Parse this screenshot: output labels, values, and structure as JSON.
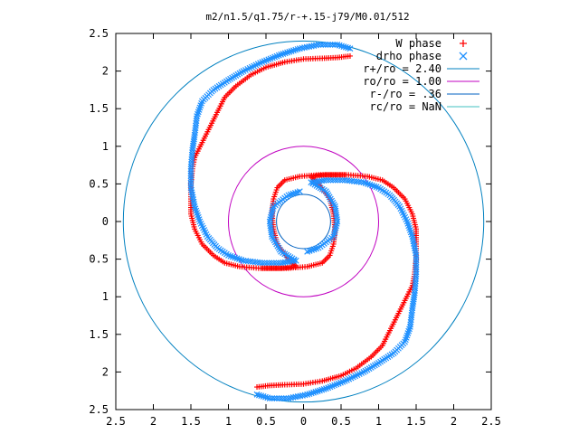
{
  "chart_data": {
    "type": "scatter",
    "title": "m2/n1.5/q1.75/r-+.15-j79/M0.01/512",
    "xlim": [
      -2.5,
      2.5
    ],
    "ylim": [
      -2.5,
      2.5
    ],
    "x_ticks": [
      -2.5,
      -2,
      -1.5,
      -1,
      -0.5,
      0,
      0.5,
      1,
      1.5,
      2,
      2.5
    ],
    "y_ticks": [
      -2.5,
      -2,
      -1.5,
      -1,
      -0.5,
      0,
      0.5,
      1,
      1.5,
      2,
      2.5
    ],
    "x_tick_labels": [
      "2.5",
      "2",
      "1.5",
      "1",
      "0.5",
      "0",
      "0.5",
      "1",
      "1.5",
      "2",
      "2.5"
    ],
    "y_tick_labels": [
      "2.5",
      "2",
      "1.5",
      "1",
      "0.5",
      "0",
      "0.5",
      "1",
      "1.5",
      "2",
      "2.5"
    ],
    "grid": false,
    "legend_position": "top-right",
    "series": [
      {
        "name": "W phase",
        "marker": "+",
        "color": "#ff0000",
        "arms": [
          [
            [
              0.55,
              0.62
            ],
            [
              0.2,
              0.62
            ],
            [
              -0.05,
              0.6
            ],
            [
              -0.25,
              0.55
            ],
            [
              -0.35,
              0.45
            ],
            [
              -0.4,
              0.3
            ],
            [
              -0.42,
              0.1
            ],
            [
              -0.4,
              -0.1
            ],
            [
              -0.35,
              -0.3
            ],
            [
              -0.2,
              -0.5
            ],
            [
              -0.1,
              -0.6
            ],
            [
              -0.3,
              -0.62
            ],
            [
              -0.6,
              -0.62
            ],
            [
              -0.85,
              -0.6
            ],
            [
              -1.05,
              -0.55
            ],
            [
              -1.2,
              -0.45
            ],
            [
              -1.35,
              -0.3
            ],
            [
              -1.45,
              -0.1
            ],
            [
              -1.5,
              0.1
            ],
            [
              -1.5,
              0.3
            ],
            [
              -1.5,
              0.5
            ],
            [
              -1.48,
              0.7
            ],
            [
              -1.45,
              0.85
            ],
            [
              -1.35,
              1.05
            ],
            [
              -1.25,
              1.25
            ],
            [
              -1.15,
              1.45
            ],
            [
              -1.05,
              1.65
            ],
            [
              -0.9,
              1.8
            ],
            [
              -0.7,
              1.95
            ],
            [
              -0.5,
              2.05
            ],
            [
              -0.25,
              2.12
            ],
            [
              0,
              2.16
            ],
            [
              0.25,
              2.17
            ],
            [
              0.45,
              2.18
            ],
            [
              0.62,
              2.2
            ]
          ],
          [
            [
              -0.55,
              -0.62
            ],
            [
              -0.2,
              -0.62
            ],
            [
              0.05,
              -0.6
            ],
            [
              0.25,
              -0.55
            ],
            [
              0.35,
              -0.45
            ],
            [
              0.4,
              -0.3
            ],
            [
              0.42,
              -0.1
            ],
            [
              0.4,
              0.1
            ],
            [
              0.35,
              0.3
            ],
            [
              0.2,
              0.5
            ],
            [
              0.1,
              0.6
            ],
            [
              0.3,
              0.62
            ],
            [
              0.6,
              0.62
            ],
            [
              0.85,
              0.6
            ],
            [
              1.05,
              0.55
            ],
            [
              1.2,
              0.45
            ],
            [
              1.35,
              0.3
            ],
            [
              1.45,
              0.1
            ],
            [
              1.5,
              -0.1
            ],
            [
              1.5,
              -0.3
            ],
            [
              1.5,
              -0.5
            ],
            [
              1.48,
              -0.7
            ],
            [
              1.45,
              -0.85
            ],
            [
              1.35,
              -1.05
            ],
            [
              1.25,
              -1.25
            ],
            [
              1.15,
              -1.45
            ],
            [
              1.05,
              -1.65
            ],
            [
              0.9,
              -1.8
            ],
            [
              0.7,
              -1.95
            ],
            [
              0.5,
              -2.05
            ],
            [
              0.25,
              -2.12
            ],
            [
              0,
              -2.16
            ],
            [
              -0.25,
              -2.17
            ],
            [
              -0.45,
              -2.18
            ],
            [
              -0.62,
              -2.2
            ]
          ]
        ]
      },
      {
        "name": "drho phase",
        "marker": "x",
        "color": "#1e90ff",
        "arms": [
          [
            [
              -0.05,
              0.4
            ],
            [
              -0.2,
              0.35
            ],
            [
              -0.4,
              0.2
            ],
            [
              -0.45,
              0
            ],
            [
              -0.42,
              -0.2
            ],
            [
              -0.3,
              -0.4
            ],
            [
              -0.1,
              -0.52
            ],
            [
              -0.3,
              -0.55
            ],
            [
              -0.55,
              -0.55
            ],
            [
              -0.8,
              -0.52
            ],
            [
              -1,
              -0.45
            ],
            [
              -1.15,
              -0.35
            ],
            [
              -1.28,
              -0.2
            ],
            [
              -1.38,
              0
            ],
            [
              -1.45,
              0.2
            ],
            [
              -1.5,
              0.45
            ],
            [
              -1.5,
              0.7
            ],
            [
              -1.48,
              0.95
            ],
            [
              -1.45,
              1.15
            ],
            [
              -1.42,
              1.4
            ],
            [
              -1.35,
              1.6
            ],
            [
              -1.2,
              1.75
            ],
            [
              -1,
              1.88
            ],
            [
              -0.8,
              2
            ],
            [
              -0.55,
              2.12
            ],
            [
              -0.3,
              2.22
            ],
            [
              -0.05,
              2.3
            ],
            [
              0.2,
              2.35
            ],
            [
              0.45,
              2.35
            ],
            [
              0.62,
              2.3
            ]
          ],
          [
            [
              0.05,
              -0.4
            ],
            [
              0.2,
              -0.35
            ],
            [
              0.4,
              -0.2
            ],
            [
              0.45,
              0
            ],
            [
              0.42,
              0.2
            ],
            [
              0.3,
              0.4
            ],
            [
              0.1,
              0.52
            ],
            [
              0.3,
              0.55
            ],
            [
              0.55,
              0.55
            ],
            [
              0.8,
              0.52
            ],
            [
              1,
              0.45
            ],
            [
              1.15,
              0.35
            ],
            [
              1.28,
              0.2
            ],
            [
              1.38,
              0
            ],
            [
              1.45,
              -0.2
            ],
            [
              1.5,
              -0.45
            ],
            [
              1.5,
              -0.7
            ],
            [
              1.48,
              -0.95
            ],
            [
              1.45,
              -1.15
            ],
            [
              1.42,
              -1.4
            ],
            [
              1.35,
              -1.6
            ],
            [
              1.2,
              -1.75
            ],
            [
              1,
              -1.88
            ],
            [
              0.8,
              -2
            ],
            [
              0.55,
              -2.12
            ],
            [
              0.3,
              -2.22
            ],
            [
              0.05,
              -2.3
            ],
            [
              -0.2,
              -2.35
            ],
            [
              -0.45,
              -2.35
            ],
            [
              -0.62,
              -2.3
            ]
          ]
        ]
      }
    ],
    "circles": [
      {
        "label": "r+/ro = 2.40",
        "radius": 2.4,
        "color": "#0080c0"
      },
      {
        "label": "ro/ro = 1.00",
        "radius": 1.0,
        "color": "#c000c0"
      },
      {
        "label": "r-/ro = .36",
        "radius": 0.36,
        "color": "#0060c0"
      },
      {
        "label": "rc/ro = NaN",
        "radius": null,
        "color": "#40c0c0"
      }
    ]
  }
}
